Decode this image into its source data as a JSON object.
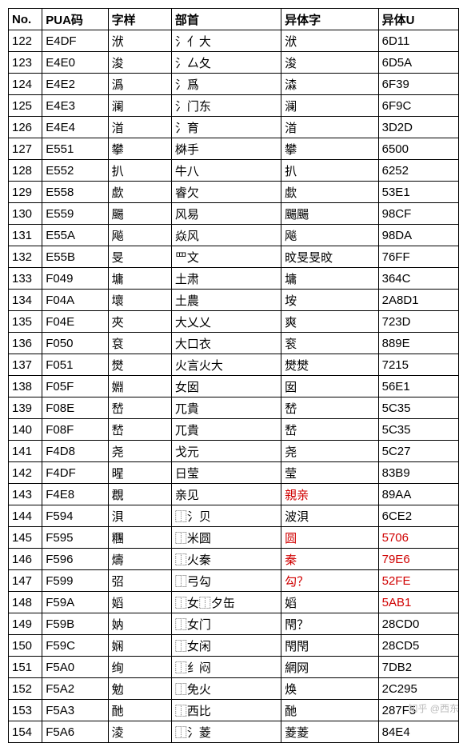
{
  "table": {
    "headers": [
      "No.",
      "PUA码",
      "字样",
      "部首",
      "异体字",
      "异体U"
    ],
    "columns_widths": [
      40,
      78,
      75,
      130,
      115,
      95
    ],
    "rows": [
      {
        "no": "122",
        "pua": "E4DF",
        "zi": "洑",
        "bushou": "氵亻大",
        "yiti": "洑",
        "yiti_red": false,
        "yitiu": "6D11",
        "yitiu_red": false
      },
      {
        "no": "123",
        "pua": "E4E0",
        "zi": "浚",
        "bushou": "氵厶夂",
        "yiti": "浚",
        "yiti_red": false,
        "yitiu": "6D5A",
        "yitiu_red": false
      },
      {
        "no": "124",
        "pua": "E4E2",
        "zi": "潙",
        "bushou": "氵爲",
        "yiti": "潹",
        "yiti_red": false,
        "yitiu": "6F39",
        "yitiu_red": false
      },
      {
        "no": "125",
        "pua": "E4E3",
        "zi": "澜",
        "bushou": "氵门东",
        "yiti": "澜",
        "yiti_red": false,
        "yitiu": "6F9C",
        "yitiu_red": false
      },
      {
        "no": "126",
        "pua": "E4E4",
        "zi": "渞",
        "bushou": "氵育",
        "yiti": "渞",
        "yiti_red": false,
        "yitiu": "3D2D",
        "yitiu_red": false
      },
      {
        "no": "127",
        "pua": "E551",
        "zi": "攀",
        "bushou": "棥手",
        "yiti": "攀",
        "yiti_red": false,
        "yitiu": "6500",
        "yitiu_red": false
      },
      {
        "no": "128",
        "pua": "E552",
        "zi": "扒",
        "bushou": "牛八",
        "yiti": "扒",
        "yiti_red": false,
        "yitiu": "6252",
        "yitiu_red": false
      },
      {
        "no": "129",
        "pua": "E558",
        "zi": "歔",
        "bushou": "睿欠",
        "yiti": "歔",
        "yiti_red": false,
        "yitiu": "53E1",
        "yitiu_red": false
      },
      {
        "no": "130",
        "pua": "E559",
        "zi": "颺",
        "bushou": "风易",
        "yiti": "颺颺",
        "yiti_red": false,
        "yitiu": "98CF",
        "yitiu_red": false
      },
      {
        "no": "131",
        "pua": "E55A",
        "zi": "飚",
        "bushou": "焱风",
        "yiti": "飚",
        "yiti_red": false,
        "yitiu": "98DA",
        "yitiu_red": false
      },
      {
        "no": "132",
        "pua": "E55B",
        "zi": "旻",
        "bushou": "罒文",
        "yiti": "旼旻旻旼",
        "yiti_red": false,
        "yitiu": "76FF",
        "yitiu_red": false
      },
      {
        "no": "133",
        "pua": "F049",
        "zi": "墉",
        "bushou": "土肃",
        "yiti": "墉",
        "yiti_red": false,
        "yitiu": "364C",
        "yitiu_red": false
      },
      {
        "no": "134",
        "pua": "F04A",
        "zi": "壞",
        "bushou": "土農",
        "yiti": "垵",
        "yiti_red": false,
        "yitiu": "2A8D1",
        "yitiu_red": false
      },
      {
        "no": "135",
        "pua": "F04E",
        "zi": "夾",
        "bushou": "大乂乂",
        "yiti": "爽",
        "yiti_red": false,
        "yitiu": "723D",
        "yitiu_red": false
      },
      {
        "no": "136",
        "pua": "F050",
        "zi": "袞",
        "bushou": "大口衣",
        "yiti": "衮",
        "yiti_red": false,
        "yitiu": "889E",
        "yitiu_red": false
      },
      {
        "no": "137",
        "pua": "F051",
        "zi": "燓",
        "bushou": "火言火大",
        "yiti": "燓燓",
        "yiti_red": false,
        "yitiu": "7215",
        "yitiu_red": false
      },
      {
        "no": "138",
        "pua": "F05F",
        "zi": "婣",
        "bushou": "女囡",
        "yiti": "囡",
        "yiti_red": false,
        "yitiu": "56E1",
        "yitiu_red": false
      },
      {
        "no": "139",
        "pua": "F08E",
        "zi": "嵆",
        "bushou": "兀貴",
        "yiti": "嵆",
        "yiti_red": false,
        "yitiu": "5C35",
        "yitiu_red": false
      },
      {
        "no": "140",
        "pua": "F08F",
        "zi": "嵆",
        "bushou": "兀貴",
        "yiti": "嵆",
        "yiti_red": false,
        "yitiu": "5C35",
        "yitiu_red": false
      },
      {
        "no": "141",
        "pua": "F4D8",
        "zi": "尧",
        "bushou": "戈元",
        "yiti": "尧",
        "yiti_red": false,
        "yitiu": "5C27",
        "yitiu_red": false
      },
      {
        "no": "142",
        "pua": "F4DF",
        "zi": "暒",
        "bushou": "日莹",
        "yiti": "莹",
        "yiti_red": false,
        "yitiu": "83B9",
        "yitiu_red": false
      },
      {
        "no": "143",
        "pua": "F4E8",
        "zi": "覠",
        "bushou": "亲见",
        "yiti": "親亲",
        "yiti_red": true,
        "yitiu": "89AA",
        "yitiu_red": false
      },
      {
        "no": "144",
        "pua": "F594",
        "zi": "浿",
        "bushou": "⿰氵贝",
        "yiti": "波浿",
        "yiti_red": false,
        "yitiu": "6CE2",
        "yitiu_red": false
      },
      {
        "no": "145",
        "pua": "F595",
        "zi": "糰",
        "bushou": "⿰米圆",
        "yiti": "圆",
        "yiti_red": true,
        "yitiu": "5706",
        "yitiu_red": true
      },
      {
        "no": "146",
        "pua": "F596",
        "zi": "燽",
        "bushou": "⿰火秦",
        "yiti": "秦",
        "yiti_red": true,
        "yitiu": "79E6",
        "yitiu_red": true
      },
      {
        "no": "147",
        "pua": "F599",
        "zi": "弨",
        "bushou": "⿰弓勾",
        "yiti": "勾？",
        "yiti_red": true,
        "yitiu": "52FE",
        "yitiu_red": true
      },
      {
        "no": "148",
        "pua": "F59A",
        "zi": "嫍",
        "bushou": "⿰女⿰夕缶",
        "yiti": "嫍",
        "yiti_red": false,
        "yitiu": "5AB1",
        "yitiu_red": true
      },
      {
        "no": "149",
        "pua": "F59B",
        "zi": "妠",
        "bushou": "⿰女门",
        "yiti": "閇？",
        "yiti_red": false,
        "yitiu": "28CD0",
        "yitiu_red": false
      },
      {
        "no": "150",
        "pua": "F59C",
        "zi": "娴",
        "bushou": "⿰女闲",
        "yiti": "閇閇",
        "yiti_red": false,
        "yitiu": "28CD5",
        "yitiu_red": false
      },
      {
        "no": "151",
        "pua": "F5A0",
        "zi": "绚",
        "bushou": "⿰纟闷",
        "yiti": "網网",
        "yiti_red": false,
        "yitiu": "7DB2",
        "yitiu_red": false
      },
      {
        "no": "152",
        "pua": "F5A2",
        "zi": "勉",
        "bushou": "⿰免火",
        "yiti": "焕",
        "yiti_red": false,
        "yitiu": "2C295",
        "yitiu_red": false
      },
      {
        "no": "153",
        "pua": "F5A3",
        "zi": "酏",
        "bushou": "⿰西比",
        "yiti": "酏",
        "yiti_red": false,
        "yitiu": "287F5",
        "yitiu_red": false
      },
      {
        "no": "154",
        "pua": "F5A6",
        "zi": "淩",
        "bushou": "⿰氵菱",
        "yiti": "菱菱",
        "yiti_red": false,
        "yitiu": "84E4",
        "yitiu_red": false
      }
    ]
  },
  "watermark": "知乎 @西东",
  "palette": {
    "border": "#000000",
    "bg": "#ffffff",
    "text": "#000000",
    "red": "#d00000"
  }
}
